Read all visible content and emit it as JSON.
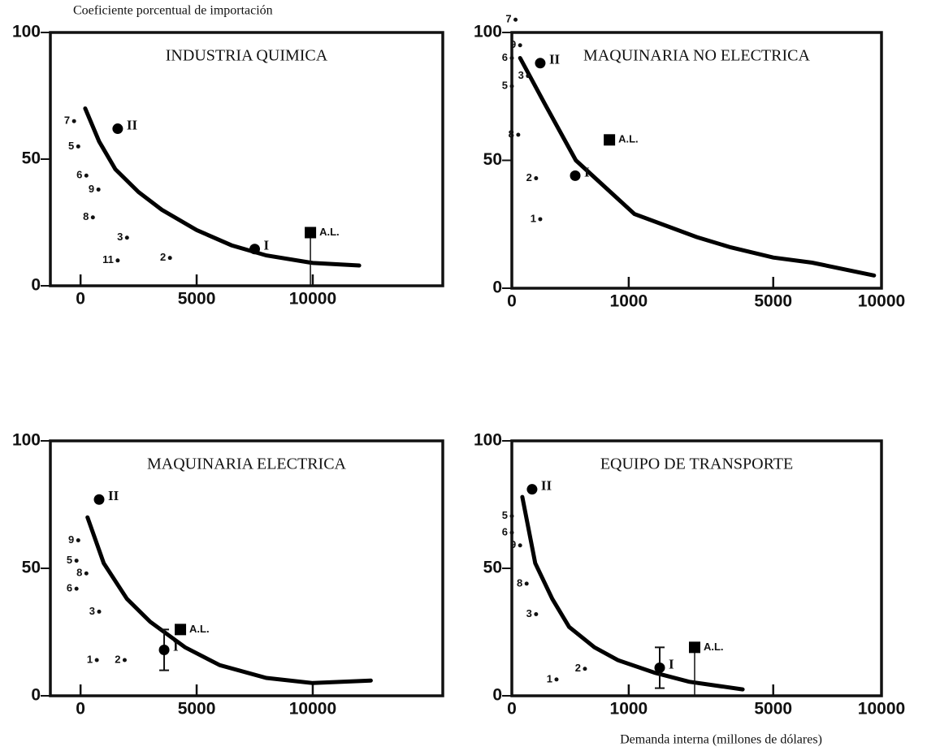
{
  "chart_data": [
    {
      "type": "scatter",
      "title": "INDUSTRIA QUIMICA",
      "ylabel": "Coeficiente porcentual de importación",
      "xscale": "linear",
      "xlim": [
        -1300,
        15600
      ],
      "ylim": [
        0,
        100
      ],
      "xticks": [
        0,
        5000,
        10000
      ],
      "yticks": [
        0,
        50,
        100
      ],
      "curve": {
        "x": [
          200,
          800,
          1500,
          2500,
          3500,
          5000,
          6500,
          8000,
          10000,
          12000
        ],
        "y": [
          70,
          57,
          46,
          37,
          30,
          22,
          16,
          12,
          9,
          8
        ]
      },
      "series": [
        {
          "marker": "dot",
          "labels": [
            "7",
            "5",
            "6",
            "9",
            "8",
            "3",
            "11",
            "2"
          ],
          "x": [
            -280,
            -100,
            250,
            770,
            530,
            2000,
            1600,
            3850
          ],
          "y": [
            65,
            55,
            43.5,
            38,
            27,
            19,
            10,
            11
          ]
        },
        {
          "marker": "circle",
          "labels": [
            "II",
            "I"
          ],
          "x": [
            1600,
            7500
          ],
          "y": [
            62,
            14.5
          ]
        },
        {
          "marker": "square",
          "labels": [
            "A.L."
          ],
          "x": [
            9900
          ],
          "y": [
            21
          ],
          "stem": true
        }
      ]
    },
    {
      "type": "scatter",
      "title": "MAQUINARIA NO ELECTRICA",
      "xscale": "sqrt",
      "xlim": [
        0,
        10000
      ],
      "ylim": [
        0,
        100
      ],
      "xticks": [
        0,
        1000,
        5000,
        10000
      ],
      "yticks": [
        0,
        50,
        100
      ],
      "curve": {
        "x": [
          5,
          80,
          300,
          1100,
          2500,
          3500,
          5000,
          6600,
          9600
        ],
        "y": [
          90,
          72,
          50,
          29,
          20,
          16,
          12,
          10,
          5
        ]
      },
      "series": [
        {
          "marker": "dot",
          "labels": [
            "7",
            "9",
            "6",
            "5",
            "3",
            "8",
            "2",
            "1"
          ],
          "x": [
            1,
            5,
            0,
            0,
            19,
            3,
            43,
            59
          ],
          "y": [
            105,
            95,
            90,
            79,
            83,
            60,
            43,
            27
          ]
        },
        {
          "marker": "circle",
          "labels": [
            "II",
            "I"
          ],
          "x": [
            59,
            294
          ],
          "y": [
            88,
            44
          ]
        },
        {
          "marker": "square",
          "labels": [
            "A.L."
          ],
          "x": [
            697
          ],
          "y": [
            58
          ]
        }
      ]
    },
    {
      "type": "scatter",
      "title": "MAQUINARIA ELECTRICA",
      "xscale": "linear",
      "xlim": [
        -1300,
        15600
      ],
      "ylim": [
        0,
        100
      ],
      "xticks": [
        0,
        5000,
        10000
      ],
      "yticks": [
        0,
        50,
        100
      ],
      "curve": {
        "x": [
          300,
          1000,
          2000,
          3000,
          4500,
          6000,
          8000,
          10000,
          12500
        ],
        "y": [
          70,
          52,
          38,
          29,
          19,
          12,
          7,
          5,
          6
        ]
      },
      "series": [
        {
          "marker": "dot",
          "labels": [
            "9",
            "5",
            "8",
            "6",
            "3",
            "1",
            "2"
          ],
          "x": [
            -100,
            -175,
            250,
            -175,
            800,
            700,
            1900
          ],
          "y": [
            61,
            53,
            48,
            42,
            33,
            14,
            14
          ]
        },
        {
          "marker": "circle",
          "labels": [
            "II",
            "I"
          ],
          "x": [
            800,
            3600
          ],
          "y": [
            77,
            18
          ],
          "errors": [
            0,
            8
          ]
        },
        {
          "marker": "square",
          "labels": [
            "A.L."
          ],
          "x": [
            4300
          ],
          "y": [
            26
          ]
        }
      ]
    },
    {
      "type": "scatter",
      "title": "EQUIPO DE TRANSPORTE",
      "xlabel": "Demanda interna  (millones de dólares)",
      "xscale": "sqrt",
      "xlim": [
        0,
        10000
      ],
      "ylim": [
        0,
        100
      ],
      "xticks": [
        0,
        1000,
        5000,
        10000
      ],
      "yticks": [
        0,
        50,
        100
      ],
      "curve": {
        "x": [
          8,
          40,
          120,
          240,
          500,
          820,
          1500,
          2300,
          3900
        ],
        "y": [
          78,
          52,
          38,
          27,
          19,
          14,
          9,
          5.5,
          2.5
        ]
      },
      "series": [
        {
          "marker": "dot",
          "labels": [
            "5",
            "6",
            "9",
            "8",
            "3",
            "1",
            "2"
          ],
          "x": [
            0,
            0,
            5,
            16,
            43,
            146,
            391
          ],
          "y": [
            70.5,
            64,
            59,
            44,
            32,
            6.4,
            10.6
          ]
        },
        {
          "marker": "circle",
          "labels": [
            "II",
            "I"
          ],
          "x": [
            30,
            1600
          ],
          "y": [
            81,
            11
          ],
          "errors": [
            0,
            8
          ]
        },
        {
          "marker": "square",
          "labels": [
            "A.L."
          ],
          "x": [
            2445
          ],
          "y": [
            19
          ],
          "stem": true
        }
      ]
    }
  ]
}
